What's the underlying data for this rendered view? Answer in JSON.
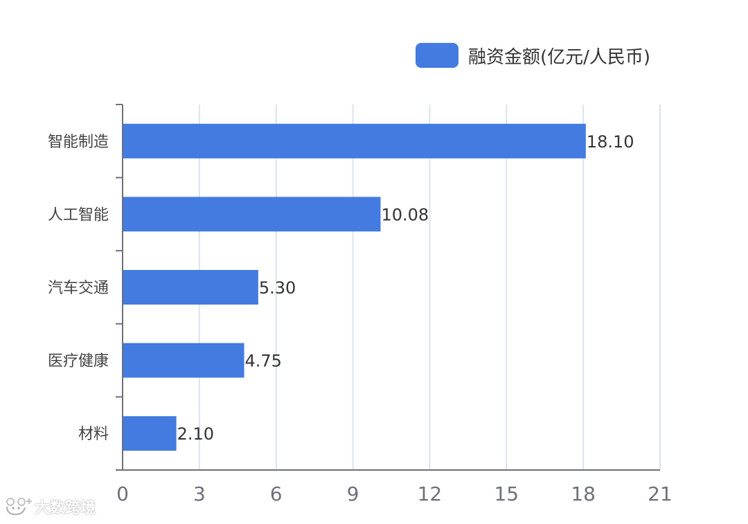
{
  "chart_data": {
    "type": "bar",
    "orientation": "horizontal",
    "categories": [
      "智能制造",
      "人工智能",
      "汽车交通",
      "医疗健康",
      "材料"
    ],
    "series": [
      {
        "name": "融资金额(亿元/人民币)",
        "values": [
          18.1,
          10.08,
          5.3,
          4.75,
          2.1
        ],
        "value_labels": [
          "18.10",
          "10.08",
          "5.30",
          "4.75",
          "2.10"
        ],
        "color": "#437be0"
      }
    ],
    "xlim": [
      0,
      21
    ],
    "x_ticks": [
      "0",
      "3",
      "6",
      "9",
      "12",
      "15",
      "18",
      "21"
    ],
    "grid": "vertical",
    "legend_position": "top-right"
  },
  "watermark": {
    "text": "大数跨境",
    "logo_icon": "bear-logo-icon"
  },
  "colors": {
    "bar": "#437be0",
    "grid": "#dde3ec",
    "axis": "#6e7079",
    "tick_label": "#6e7079",
    "category_label": "#444444",
    "value_label": "#333333"
  }
}
